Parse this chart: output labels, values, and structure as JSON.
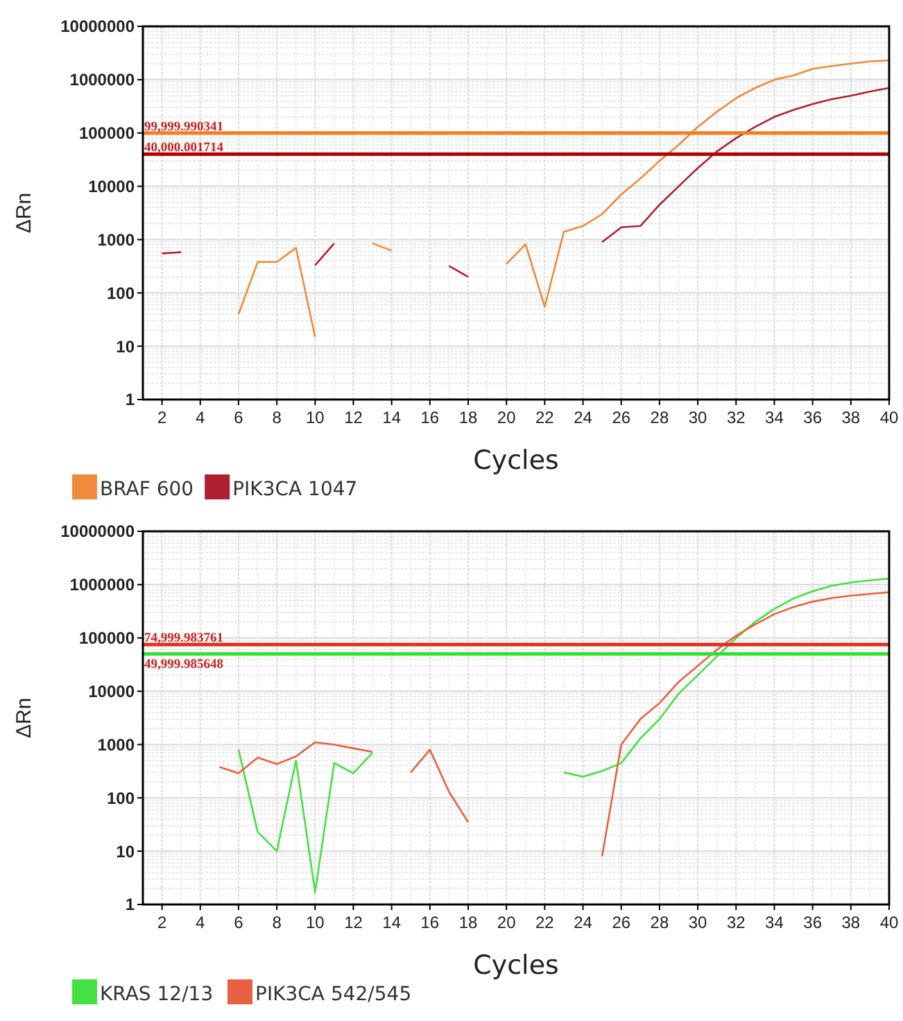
{
  "chart_data": [
    {
      "type": "line",
      "xlabel": "Cycles",
      "ylabel": "ΔRn",
      "log": "y",
      "grid": true,
      "legend": "bottom",
      "marker": "none",
      "line_style": "solid",
      "x": [
        2,
        3,
        4,
        5,
        6,
        7,
        8,
        9,
        10,
        11,
        12,
        13,
        14,
        15,
        16,
        17,
        18,
        19,
        20,
        21,
        22,
        23,
        24,
        25,
        26,
        27,
        28,
        29,
        30,
        31,
        32,
        33,
        34,
        35,
        36,
        37,
        38,
        39,
        40
      ],
      "xlim": [
        1,
        40
      ],
      "xticks": [
        2,
        4,
        6,
        8,
        10,
        12,
        14,
        16,
        18,
        20,
        22,
        24,
        26,
        28,
        30,
        32,
        34,
        36,
        38,
        40
      ],
      "ylim": [
        1,
        10000000
      ],
      "yticks": [
        1,
        10,
        100,
        1000,
        10000,
        100000,
        1000000,
        10000000
      ],
      "ref_lines": [
        {
          "axis": "y",
          "value": 99999.990341,
          "label": "99,999.990341",
          "color": "#f57c1f"
        },
        {
          "axis": "y",
          "value": 40000.001714,
          "label": "40,000.001714",
          "color": "#b00000"
        }
      ],
      "series": [
        {
          "name": "BRAF 600",
          "color": "#f08a3c",
          "values": [
            null,
            null,
            null,
            null,
            40,
            380,
            380,
            700,
            15,
            null,
            null,
            850,
            620,
            null,
            null,
            null,
            null,
            null,
            350,
            820,
            55,
            1400,
            1800,
            3000,
            7000,
            14000,
            30000,
            60000,
            130000,
            250000,
            450000,
            700000,
            1000000,
            1200000,
            1600000,
            1800000,
            2000000,
            2200000,
            2300000
          ]
        },
        {
          "name": "PIK3CA 1047",
          "color": "#b02030",
          "values": [
            550,
            580,
            null,
            null,
            null,
            null,
            null,
            null,
            330,
            850,
            null,
            null,
            null,
            null,
            null,
            320,
            200,
            null,
            null,
            null,
            null,
            null,
            null,
            900,
            1700,
            1800,
            4500,
            10000,
            22000,
            45000,
            80000,
            130000,
            200000,
            270000,
            350000,
            430000,
            500000,
            600000,
            700000
          ]
        }
      ]
    },
    {
      "type": "line",
      "xlabel": "Cycles",
      "ylabel": "ΔRn",
      "log": "y",
      "grid": true,
      "legend": "bottom",
      "marker": "none",
      "line_style": "solid",
      "x": [
        5,
        6,
        7,
        8,
        9,
        10,
        11,
        12,
        13,
        14,
        15,
        16,
        17,
        18,
        19,
        20,
        21,
        22,
        23,
        24,
        25,
        26,
        27,
        28,
        29,
        30,
        31,
        32,
        33,
        34,
        35,
        36,
        37,
        38,
        39,
        40
      ],
      "xlim": [
        1,
        40
      ],
      "xticks": [
        2,
        4,
        6,
        8,
        10,
        12,
        14,
        16,
        18,
        20,
        22,
        24,
        26,
        28,
        30,
        32,
        34,
        36,
        38,
        40
      ],
      "ylim": [
        1,
        10000000
      ],
      "yticks": [
        1,
        10,
        100,
        1000,
        10000,
        100000,
        1000000,
        10000000
      ],
      "ref_lines": [
        {
          "axis": "y",
          "value": 74999.983761,
          "label": "74,999.983761",
          "color": "#e03020"
        },
        {
          "axis": "y",
          "value": 49999.985648,
          "label": "49,999.985648",
          "color": "#30e030"
        }
      ],
      "series": [
        {
          "name": "KRAS 12/13",
          "color": "#44e044",
          "values": [
            null,
            800,
            23,
            10,
            500,
            1.7,
            450,
            290,
            700,
            null,
            null,
            null,
            null,
            null,
            null,
            null,
            null,
            null,
            300,
            250,
            320,
            450,
            1300,
            3000,
            9000,
            20000,
            45000,
            100000,
            200000,
            350000,
            550000,
            750000,
            950000,
            1100000,
            1200000,
            1300000
          ]
        },
        {
          "name": "PIK3CA 542/545",
          "color": "#e86040",
          "values": [
            380,
            290,
            570,
            430,
            600,
            1100,
            1000,
            850,
            730,
            null,
            300,
            800,
            130,
            35,
            null,
            null,
            null,
            null,
            null,
            null,
            8,
            1000,
            3000,
            6000,
            15000,
            30000,
            60000,
            110000,
            180000,
            280000,
            380000,
            480000,
            560000,
            620000,
            670000,
            720000
          ]
        }
      ]
    }
  ]
}
